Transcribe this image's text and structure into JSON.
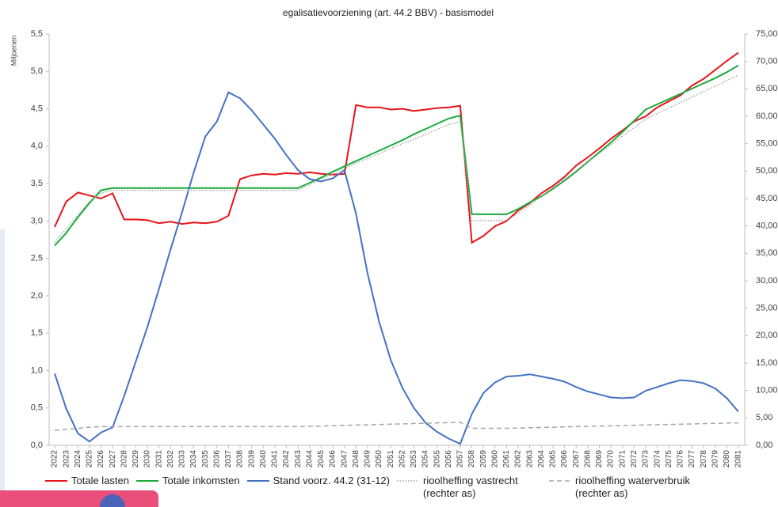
{
  "chart_data": {
    "type": "line",
    "title": "egalisatievoorziening (art. 44.2 BBV) - basismodel",
    "ylabel": "Miljoenen",
    "categories": [
      "2022",
      "2023",
      "2024",
      "2025",
      "2026",
      "2027",
      "2028",
      "2029",
      "2030",
      "2031",
      "2032",
      "2033",
      "2034",
      "2035",
      "2036",
      "2037",
      "2038",
      "2039",
      "2040",
      "2041",
      "2042",
      "2043",
      "2044",
      "2045",
      "2046",
      "2047",
      "2048",
      "2049",
      "2050",
      "2051",
      "2052",
      "2053",
      "2054",
      "2055",
      "2056",
      "2057",
      "2058",
      "2059",
      "2060",
      "2061",
      "2062",
      "2063",
      "2064",
      "2065",
      "2066",
      "2067",
      "2068",
      "2069",
      "2070",
      "2071",
      "2072",
      "2073",
      "2074",
      "2075",
      "2076",
      "2077",
      "2078",
      "2079",
      "2080",
      "2081"
    ],
    "ylim": [
      0,
      5.5
    ],
    "yticks": [
      {
        "value": 0,
        "label": "0,0"
      },
      {
        "value": 0.5,
        "label": "0,5"
      },
      {
        "value": 1,
        "label": "1,0"
      },
      {
        "value": 1.5,
        "label": "1,5"
      },
      {
        "value": 2,
        "label": "2,0"
      },
      {
        "value": 2.5,
        "label": "2,5"
      },
      {
        "value": 3,
        "label": "3,0"
      },
      {
        "value": 3.5,
        "label": "3,5"
      },
      {
        "value": 4,
        "label": "4,0"
      },
      {
        "value": 4.5,
        "label": "4,5"
      },
      {
        "value": 5,
        "label": "5,0"
      },
      {
        "value": 5.5,
        "label": "5,5"
      }
    ],
    "y2lim": [
      0,
      75
    ],
    "y2ticks": [
      {
        "value": 0,
        "label": "0,00"
      },
      {
        "value": 5,
        "label": "5,00"
      },
      {
        "value": 10,
        "label": "10,00"
      },
      {
        "value": 15,
        "label": "15,00"
      },
      {
        "value": 20,
        "label": "20,00"
      },
      {
        "value": 25,
        "label": "25,00"
      },
      {
        "value": 30,
        "label": "30,00"
      },
      {
        "value": 35,
        "label": "35,00"
      },
      {
        "value": 40,
        "label": "40,00"
      },
      {
        "value": 45,
        "label": "45,00"
      },
      {
        "value": 50,
        "label": "50,00"
      },
      {
        "value": 55,
        "label": "55,00"
      },
      {
        "value": 60,
        "label": "60,00"
      },
      {
        "value": 65,
        "label": "65,00"
      },
      {
        "value": 70,
        "label": "70,00"
      },
      {
        "value": 75,
        "label": "75,00"
      }
    ],
    "grid": false,
    "legend": "bottom",
    "series": [
      {
        "name": "Totale lasten",
        "color": "#e8141b",
        "style": "solid",
        "values": [
          2.92,
          3.26,
          3.38,
          3.34,
          3.3,
          3.37,
          3.02,
          3.02,
          3.01,
          2.97,
          2.99,
          2.96,
          2.98,
          2.97,
          2.99,
          3.07,
          3.56,
          3.61,
          3.63,
          3.62,
          3.64,
          3.63,
          3.65,
          3.63,
          3.62,
          3.63,
          4.55,
          4.52,
          4.52,
          4.49,
          4.5,
          4.47,
          4.49,
          4.51,
          4.52,
          4.54,
          2.71,
          2.8,
          2.93,
          3.0,
          3.14,
          3.24,
          3.37,
          3.47,
          3.59,
          3.74,
          3.85,
          3.97,
          4.1,
          4.21,
          4.33,
          4.4,
          4.52,
          4.6,
          4.68,
          4.81,
          4.9,
          5.02,
          5.14,
          5.25
        ]
      },
      {
        "name": "Totale inkomsten",
        "color": "#1aac3c",
        "style": "solid",
        "values": [
          2.67,
          2.84,
          3.05,
          3.24,
          3.41,
          3.44,
          3.44,
          3.44,
          3.44,
          3.44,
          3.44,
          3.44,
          3.44,
          3.44,
          3.44,
          3.44,
          3.44,
          3.44,
          3.44,
          3.44,
          3.44,
          3.44,
          3.51,
          3.58,
          3.66,
          3.73,
          3.8,
          3.87,
          3.94,
          4.01,
          4.08,
          4.16,
          4.23,
          4.3,
          4.37,
          4.41,
          3.09,
          3.09,
          3.09,
          3.09,
          3.16,
          3.25,
          3.33,
          3.43,
          3.54,
          3.66,
          3.79,
          3.92,
          4.05,
          4.19,
          4.34,
          4.49,
          4.56,
          4.63,
          4.7,
          4.77,
          4.84,
          4.91,
          4.99,
          5.08
        ]
      },
      {
        "name": "Stand voorz. 44.2 (31-12)",
        "color": "#4472c4",
        "style": "solid",
        "values": [
          0.96,
          0.49,
          0.16,
          0.05,
          0.17,
          0.24,
          0.66,
          1.12,
          1.58,
          2.09,
          2.62,
          3.12,
          3.65,
          4.13,
          4.33,
          4.72,
          4.64,
          4.48,
          4.29,
          4.1,
          3.88,
          3.68,
          3.56,
          3.53,
          3.57,
          3.68,
          3.1,
          2.3,
          1.65,
          1.14,
          0.77,
          0.5,
          0.3,
          0.18,
          0.09,
          0.02,
          0.42,
          0.7,
          0.84,
          0.92,
          0.93,
          0.95,
          0.92,
          0.89,
          0.85,
          0.78,
          0.72,
          0.68,
          0.64,
          0.63,
          0.64,
          0.73,
          0.78,
          0.83,
          0.87,
          0.86,
          0.83,
          0.76,
          0.63,
          0.45
        ]
      },
      {
        "name": "rioolheffing vastrecht (rechter as)",
        "color": "#a6a6a6",
        "style": "dotted",
        "axis": "y2",
        "values": [
          37,
          39.5,
          42,
          44.5,
          46,
          46.5,
          46.5,
          46.5,
          46.5,
          46.5,
          46.5,
          46.5,
          46.5,
          46.5,
          46.5,
          46.5,
          46.5,
          46.5,
          46.5,
          46.5,
          46.5,
          46.5,
          47.5,
          48.5,
          49.5,
          50.5,
          51.4,
          52.3,
          53.2,
          54.1,
          55,
          55.8,
          56.7,
          57.6,
          58.5,
          59,
          41,
          41,
          41,
          41,
          42.3,
          43.8,
          45.4,
          47,
          48.5,
          50.1,
          51.7,
          53.2,
          54.8,
          56.4,
          57.9,
          59.5,
          60.5,
          61.5,
          62.5,
          63.5,
          64.5,
          65.5,
          66.5,
          67.5
        ]
      },
      {
        "name": "rioolheffing waterverbruik (rechter as)",
        "color": "#a6a6a6",
        "style": "dashed",
        "axis": "y2",
        "values": [
          2.7,
          2.9,
          3.1,
          3.3,
          3.4,
          3.4,
          3.4,
          3.4,
          3.4,
          3.4,
          3.4,
          3.4,
          3.4,
          3.4,
          3.4,
          3.4,
          3.4,
          3.4,
          3.4,
          3.4,
          3.4,
          3.4,
          3.46,
          3.51,
          3.57,
          3.63,
          3.69,
          3.74,
          3.8,
          3.86,
          3.91,
          3.97,
          4.03,
          4.09,
          4.14,
          4.2,
          3.1,
          3.1,
          3.1,
          3.1,
          3.15,
          3.2,
          3.25,
          3.3,
          3.35,
          3.4,
          3.45,
          3.5,
          3.55,
          3.6,
          3.65,
          3.7,
          3.75,
          3.8,
          3.85,
          3.9,
          3.95,
          4.0,
          4.05,
          4.1
        ]
      }
    ]
  }
}
